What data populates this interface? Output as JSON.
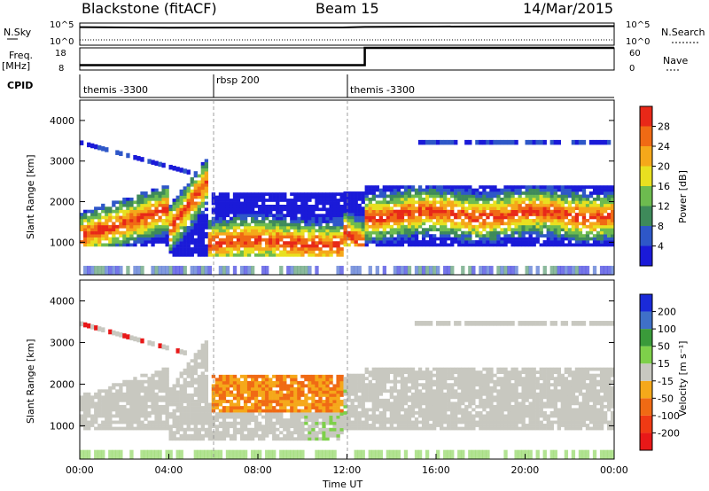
{
  "header": {
    "title": "Blackstone (fitACF)",
    "beam": "Beam 15",
    "date": "14/Mar/2015"
  },
  "noise_panel": {
    "left_label": "N.Sky",
    "right_label": "N.Search",
    "left_ticks": [
      "10^5",
      "10^0"
    ],
    "right_ticks": [
      "10^5",
      "10^0"
    ]
  },
  "freq_panel": {
    "left_label_line1": "Freq.",
    "left_label_line2": "[MHz]",
    "right_label": "Nave",
    "left_ticks": [
      "18",
      "8"
    ],
    "right_ticks": [
      "60",
      "0"
    ]
  },
  "cpid": {
    "label": "CPID",
    "segments": [
      {
        "name": "themis -3300",
        "start_h": 0
      },
      {
        "name": "rbsp 200",
        "start_h": 6
      },
      {
        "name": "themis -3300",
        "start_h": 12
      }
    ]
  },
  "time_axis": {
    "label": "Time UT",
    "ticks": [
      "00:00",
      "04:00",
      "08:00",
      "12:00",
      "16:00",
      "20:00",
      "00:00"
    ]
  },
  "range_axis": {
    "label": "Slant Range [km]",
    "ticks": [
      "1000",
      "2000",
      "3000",
      "4000"
    ]
  },
  "power_colorbar": {
    "label": "Power [dB]",
    "ticks": [
      "4",
      "8",
      "12",
      "16",
      "20",
      "24",
      "28"
    ],
    "colors": [
      "#1a1ad8",
      "#2e57c8",
      "#3e8a5a",
      "#6dbb4f",
      "#e8e020",
      "#f5a81a",
      "#f06a14",
      "#e82818"
    ]
  },
  "velocity_colorbar": {
    "label": "Velocity [m s⁻¹]",
    "ticks": [
      "200",
      "100",
      "50",
      "15",
      "-15",
      "-50",
      "-100",
      "-200"
    ],
    "colors": [
      "#1a2ad8",
      "#3f70c8",
      "#3a9a3a",
      "#7ed04a",
      "#c8c8c0",
      "#f5a81a",
      "#f06a14",
      "#f03a14",
      "#e81818"
    ]
  },
  "chart_data": [
    {
      "type": "line",
      "panel": "noise",
      "y_scale": "log",
      "ylim": [
        1,
        100000
      ],
      "xlim": [
        0,
        24
      ],
      "series": [
        {
          "x": [
            0,
            4,
            8,
            11.8,
            12.8,
            16,
            20,
            24
          ],
          "y": [
            12000,
            9000,
            9500,
            10000,
            13000,
            16000,
            18000,
            20000
          ]
        }
      ]
    },
    {
      "type": "line",
      "panel": "frequency",
      "ylim": [
        8,
        18
      ],
      "xlim": [
        0,
        24
      ],
      "series": [
        {
          "x": [
            0,
            12.8,
            12.8,
            24
          ],
          "y": [
            10.2,
            10.2,
            18,
            18
          ]
        }
      ]
    },
    {
      "type": "heatmap",
      "panel": "power",
      "xlim": [
        0,
        24
      ],
      "ylim": [
        200,
        4500
      ],
      "zlim": [
        0,
        30
      ]
    },
    {
      "type": "heatmap",
      "panel": "velocity",
      "xlim": [
        0,
        24
      ],
      "ylim": [
        200,
        4500
      ],
      "zlim": [
        -250,
        250
      ]
    }
  ]
}
